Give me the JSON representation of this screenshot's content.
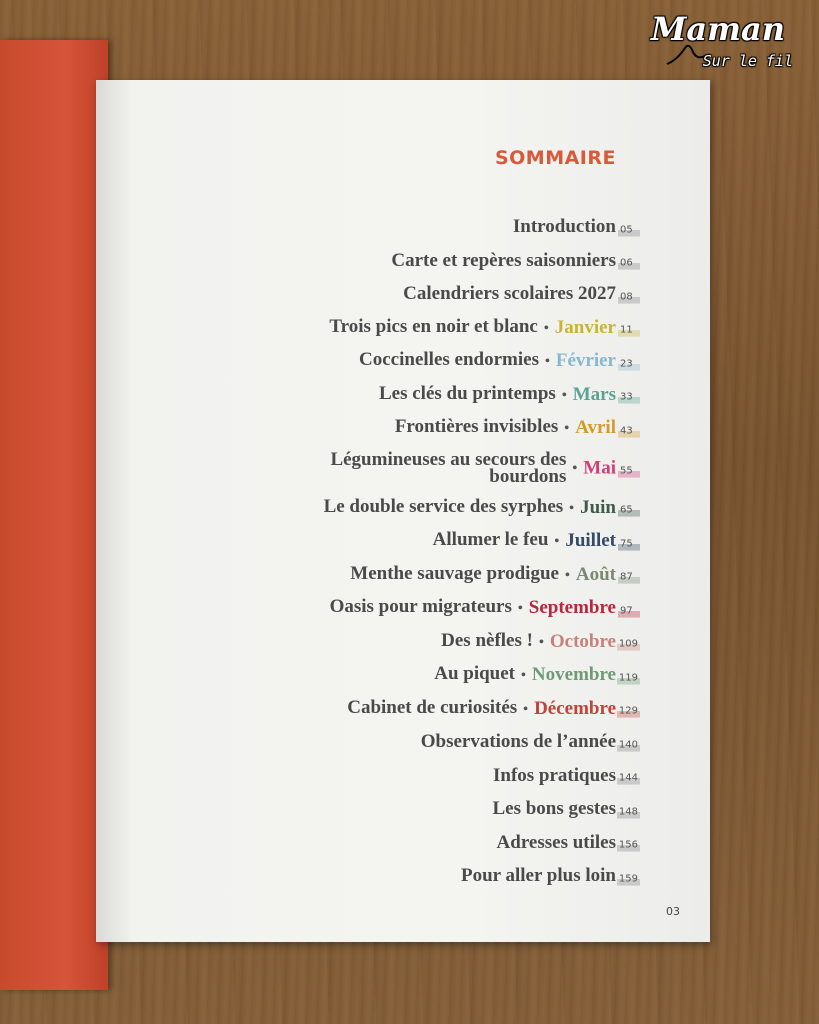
{
  "page_title": "SOMMAIRE",
  "page_number": "03",
  "watermark": {
    "main": "Maman",
    "sub": "Sur le fil"
  },
  "colors": {
    "title": "#d95a3a",
    "cover": "#d6543a",
    "Janvier": "#c8b43a",
    "Février": "#86b8cf",
    "Mars": "#5aa294",
    "Avril": "#d49a2c",
    "Mai": "#d23e78",
    "Juin": "#3f5a48",
    "Juillet": "#354a66",
    "Août": "#7a8a70",
    "Septembre": "#b8283c",
    "Octobre": "#c8807a",
    "Novembre": "#6e9a76",
    "Décembre": "#c0443a"
  },
  "toc": [
    {
      "title": "Introduction",
      "month": "",
      "page": "05"
    },
    {
      "title": "Carte et repères saisonniers",
      "month": "",
      "page": "06"
    },
    {
      "title": "Calendriers scolaires 2027",
      "month": "",
      "page": "08"
    },
    {
      "title": "Trois pics en noir et blanc",
      "month": "Janvier",
      "page": "11"
    },
    {
      "title": "Coccinelles endormies",
      "month": "Février",
      "page": "23"
    },
    {
      "title": "Les clés du printemps",
      "month": "Mars",
      "page": "33"
    },
    {
      "title": "Frontières invisibles",
      "month": "Avril",
      "page": "43"
    },
    {
      "title": "Légumineuses au secours des bourdons",
      "month": "Mai",
      "page": "55"
    },
    {
      "title": "Le double service des syrphes",
      "month": "Juin",
      "page": "65"
    },
    {
      "title": "Allumer le feu",
      "month": "Juillet",
      "page": "75"
    },
    {
      "title": "Menthe sauvage prodigue",
      "month": "Août",
      "page": "87"
    },
    {
      "title": "Oasis pour migrateurs",
      "month": "Septembre",
      "page": "97"
    },
    {
      "title": "Des nèfles !",
      "month": "Octobre",
      "page": "109"
    },
    {
      "title": "Au piquet",
      "month": "Novembre",
      "page": "119"
    },
    {
      "title": "Cabinet de curiosités",
      "month": "Décembre",
      "page": "129"
    },
    {
      "title": "Observations de l’année",
      "month": "",
      "page": "140"
    },
    {
      "title": "Infos pratiques",
      "month": "",
      "page": "144"
    },
    {
      "title": "Les bons gestes",
      "month": "",
      "page": "148"
    },
    {
      "title": "Adresses utiles",
      "month": "",
      "page": "156"
    },
    {
      "title": "Pour aller plus loin",
      "month": "",
      "page": "159"
    }
  ]
}
